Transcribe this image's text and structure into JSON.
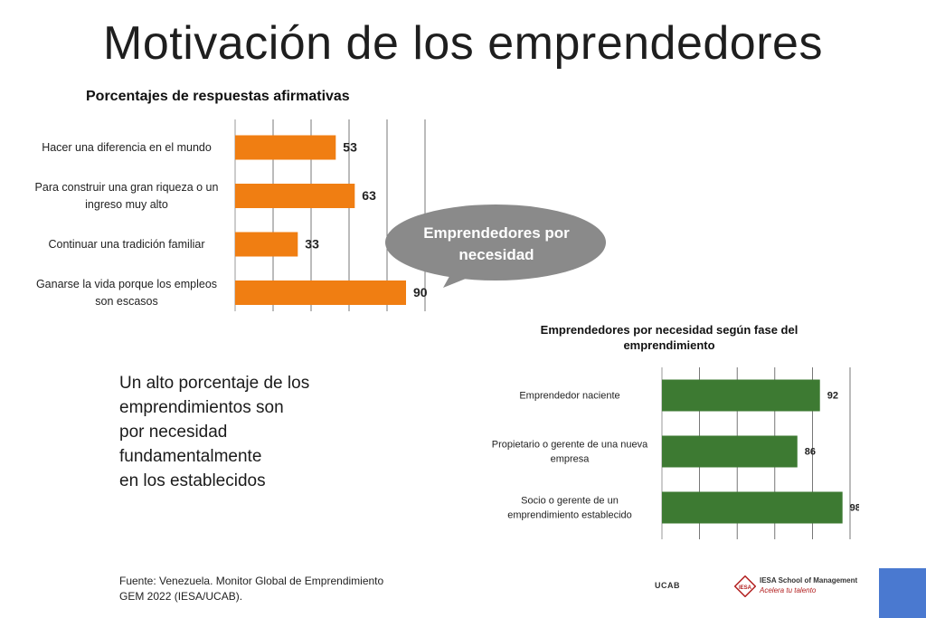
{
  "title": "Motivación de los emprendedores",
  "callout": "Emprendedores por necesidad",
  "body_text": "Un alto porcentaje de los emprendimientos son por necesidad fundamentalmente en los establecidos",
  "body_lines": [
    "Un alto porcentaje de los",
    "emprendimientos son",
    "por necesidad",
    "fundamentalmente",
    "en los establecidos"
  ],
  "source_lines": [
    "Fuente: Venezuela. Monitor Global de Emprendimiento",
    "GEM 2022 (IESA/UCAB)."
  ],
  "logos": {
    "ucab": "UCAB",
    "iesa_name": "IESA School of Management",
    "iesa_tagline": "Acelera tu talento",
    "iesa_emblem": "IESA"
  },
  "colors": {
    "bar1": "#f07e12",
    "bar2": "#3d7a32",
    "callout": "#8a8a8a",
    "corner": "#4a79d0"
  },
  "chart_data": [
    {
      "type": "bar",
      "orientation": "horizontal",
      "title": "Porcentajes de respuestas afirmativas",
      "categories": [
        [
          "Hacer una diferencia en el mundo"
        ],
        [
          "Para construir una gran riqueza o un",
          "ingreso muy alto"
        ],
        [
          "Continuar una tradición familiar"
        ],
        [
          "Ganarse la vida porque los empleos",
          "son escasos"
        ]
      ],
      "values": [
        53,
        63,
        33,
        90
      ],
      "data_labels": [
        "53",
        "63",
        "33",
        "90"
      ],
      "xlim": [
        0,
        100
      ],
      "grid": true,
      "color": "#f07e12"
    },
    {
      "type": "bar",
      "orientation": "horizontal",
      "title": "Emprendedores por necesidad según fase del emprendimiento",
      "title_lines": [
        "Emprendedores por necesidad según fase del",
        "emprendimiento"
      ],
      "categories": [
        [
          "Emprendedor naciente"
        ],
        [
          "Propietario o gerente de una nueva",
          "empresa"
        ],
        [
          "Socio o gerente de un",
          "emprendimiento establecido"
        ]
      ],
      "values": [
        92,
        86,
        98
      ],
      "data_labels": [
        "92",
        "86",
        "98"
      ],
      "xlim": [
        50,
        100
      ],
      "grid": true,
      "color": "#3d7a32"
    }
  ]
}
